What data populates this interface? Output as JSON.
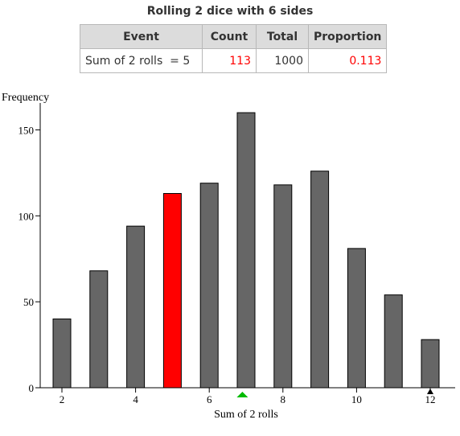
{
  "title": "Rolling 2 dice with 6 sides",
  "table": {
    "headers": [
      "Event",
      "Count",
      "Total",
      "Proportion"
    ],
    "row": {
      "event": "Sum of 2 rolls  = 5",
      "count": "113",
      "total": "1000",
      "proportion": "0.113"
    }
  },
  "colors": {
    "bar": "#666666",
    "highlight_bar": "#ff0000",
    "highlight_text": "#ff0000",
    "mean_marker": "#00bb00",
    "header_bg": "#dcdcdc"
  },
  "chart_data": {
    "type": "bar",
    "ylabel": "Frequency",
    "xlabel": "Sum of 2 rolls",
    "x": [
      2,
      3,
      4,
      5,
      6,
      7,
      8,
      9,
      10,
      11,
      12
    ],
    "values": [
      40,
      68,
      94,
      113,
      119,
      160,
      118,
      126,
      81,
      54,
      28
    ],
    "highlight_x": 5,
    "ylim": [
      0,
      160
    ],
    "yticks": [
      0,
      50,
      100,
      150
    ],
    "xlim": [
      1.5,
      12.5
    ],
    "xticks": [
      2,
      4,
      6,
      8,
      10,
      12
    ],
    "mean_marker_x": 6.9,
    "pointer_marker_x": 12,
    "grid": false
  }
}
